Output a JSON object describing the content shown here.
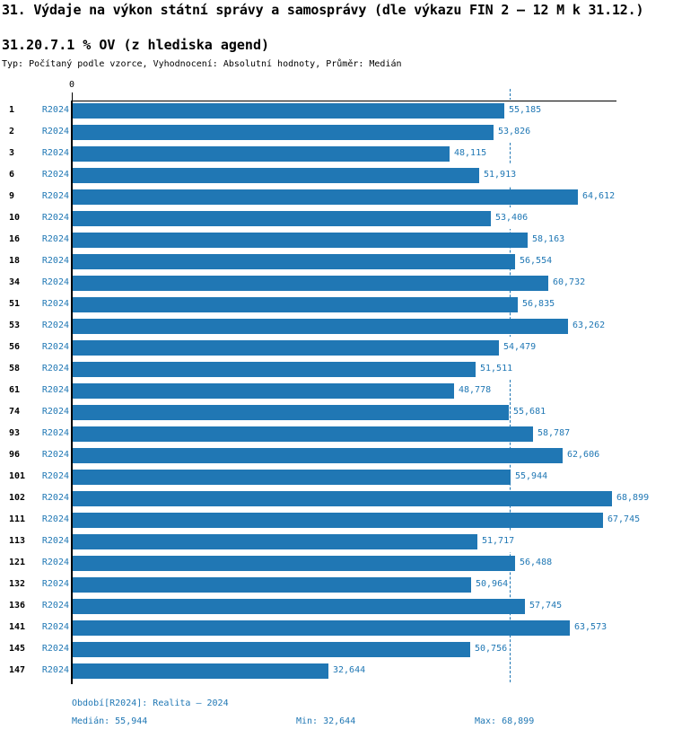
{
  "header": {
    "title": "31. Výdaje na výkon státní správy a samosprávy (dle výkazu FIN 2 – 12 M k 31.12.)",
    "subtitle": "31.20.7.1 % OV (z hlediska agend)",
    "meta": "Typ: Počítaný podle vzorce, Vyhodnocení: Absolutní hodnoty, Průměr: Medián"
  },
  "chart_data": {
    "type": "bar",
    "orientation": "horizontal",
    "title": "31.20.7.1 % OV (z hlediska agend)",
    "series_label": "R2024",
    "categories": [
      "1",
      "2",
      "3",
      "6",
      "9",
      "10",
      "16",
      "18",
      "34",
      "51",
      "53",
      "56",
      "58",
      "61",
      "74",
      "93",
      "96",
      "101",
      "102",
      "111",
      "113",
      "121",
      "132",
      "136",
      "141",
      "145",
      "147"
    ],
    "values": [
      55185,
      53826,
      48115,
      51913,
      64612,
      53406,
      58163,
      56554,
      60732,
      56835,
      63262,
      54479,
      51511,
      48778,
      55681,
      58787,
      62606,
      55944,
      68899,
      67745,
      51717,
      56488,
      50964,
      57745,
      63573,
      50756,
      32644
    ],
    "value_labels": [
      "55,185",
      "53,826",
      "48,115",
      "51,913",
      "64,612",
      "53,406",
      "58,163",
      "56,554",
      "60,732",
      "56,835",
      "63,262",
      "54,479",
      "51,511",
      "48,778",
      "55,681",
      "58,787",
      "62,606",
      "55,944",
      "68,899",
      "67,745",
      "51,717",
      "56,488",
      "50,964",
      "57,745",
      "63,573",
      "50,756",
      "32,644"
    ],
    "xlim": [
      0,
      69600
    ],
    "zero_tick_label": "0",
    "median_value": 55944,
    "median_line": true,
    "grid": false,
    "legend": "none",
    "bar_color": "#2077b4",
    "label_color": "#1f77b4",
    "axis_color": "#000000"
  },
  "footer": {
    "period": "Období[R2024]: Realita – 2024",
    "median": "Medián: 55,944",
    "min": "Min: 32,644",
    "max": "Max: 68,899"
  }
}
